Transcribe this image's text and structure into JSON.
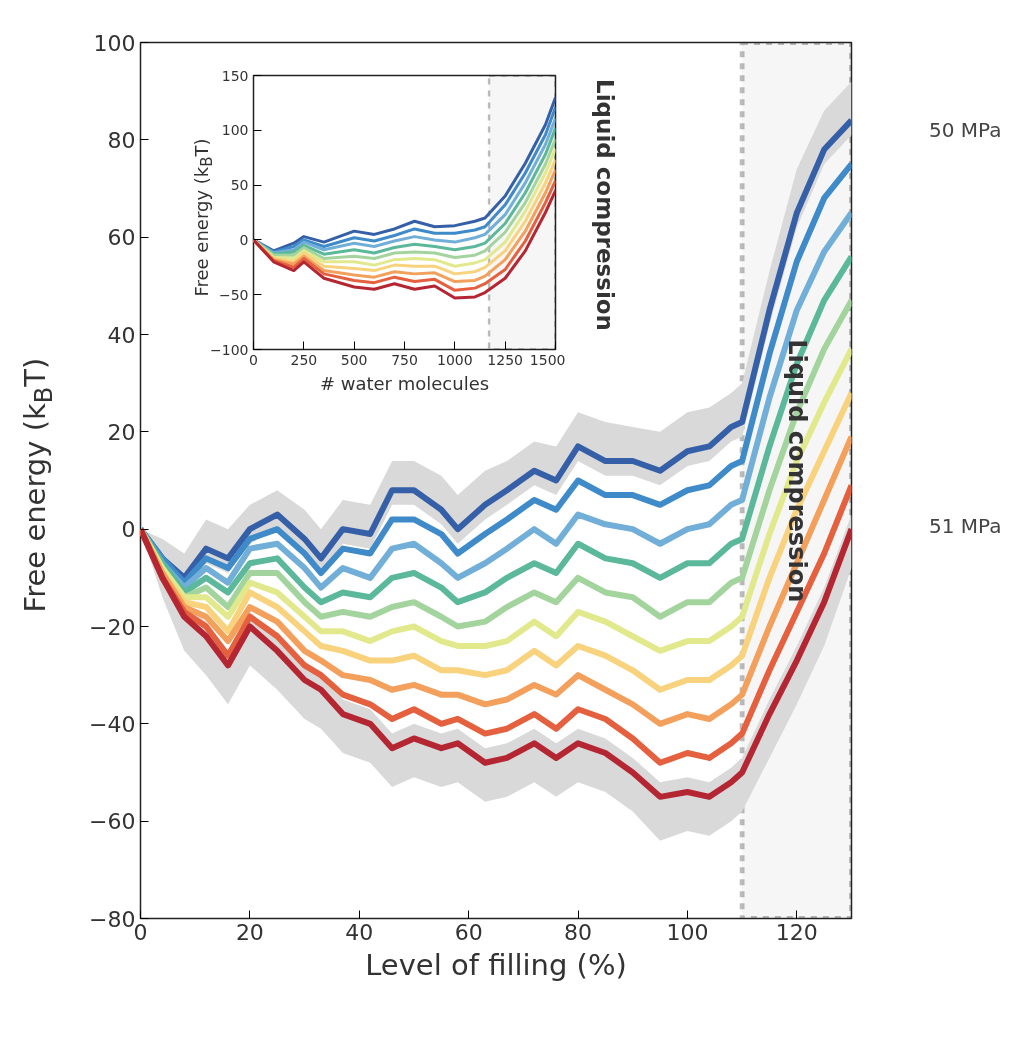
{
  "chart_data": [
    {
      "type": "line",
      "xlabel": "Level of filling (%)",
      "ylabel": "Free energy (k$_{B}$T)",
      "xlim": [
        0,
        130
      ],
      "ylim": [
        -80,
        100
      ],
      "xticks": [
        0,
        20,
        40,
        60,
        80,
        100,
        120
      ],
      "yticks": [
        -80,
        -60,
        -40,
        -20,
        0,
        20,
        40,
        60,
        80,
        100
      ],
      "legend": "right",
      "grid": false,
      "marker": "none",
      "line_style": "solid",
      "x": [
        0,
        4,
        8,
        12,
        16,
        20,
        25,
        30,
        33,
        37,
        42,
        46,
        50,
        55,
        58,
        63,
        67,
        72,
        76,
        80,
        85,
        90,
        95,
        100,
        104,
        108,
        110,
        115,
        120,
        125,
        130
      ],
      "series": [
        {
          "name": "50 MPa",
          "color": "#3560a8",
          "values": [
            0,
            -6,
            -10,
            -4,
            -6,
            0,
            3,
            -2,
            -6,
            0,
            -1,
            8,
            8,
            4,
            0,
            5,
            8,
            12,
            10,
            17,
            14,
            14,
            12,
            16,
            17,
            21,
            22,
            45,
            65,
            78,
            84
          ],
          "upper": [
            0,
            -2,
            -5,
            2,
            0,
            5,
            8,
            4,
            0,
            6,
            5,
            14,
            14,
            11,
            7,
            12,
            14,
            18,
            17,
            24,
            22,
            21,
            20,
            24,
            25,
            28,
            30,
            53,
            74,
            86,
            92
          ],
          "lower": [
            0,
            -8,
            -13,
            -7,
            -9,
            -3,
            0,
            -5,
            -9,
            -3,
            -4,
            5,
            5,
            1,
            -3,
            2,
            5,
            9,
            7,
            14,
            11,
            11,
            9,
            13,
            14,
            18,
            19,
            42,
            62,
            75,
            81
          ]
        },
        {
          "color": "#3f8ac8",
          "values": [
            0,
            -6,
            -11,
            -6,
            -8,
            -2,
            0,
            -5,
            -9,
            -4,
            -5,
            2,
            2,
            -1,
            -5,
            -1,
            2,
            6,
            4,
            10,
            7,
            7,
            5,
            8,
            9,
            13,
            14,
            36,
            55,
            68,
            75
          ]
        },
        {
          "color": "#72afd8",
          "values": [
            0,
            -7,
            -12,
            -8,
            -11,
            -4,
            -3,
            -8,
            -12,
            -8,
            -10,
            -4,
            -3,
            -7,
            -10,
            -7,
            -4,
            0,
            -3,
            3,
            1,
            0,
            -3,
            0,
            1,
            5,
            6,
            27,
            45,
            57,
            65
          ]
        },
        {
          "color": "#5cb89a",
          "values": [
            0,
            -7,
            -13,
            -10,
            -13,
            -7,
            -6,
            -12,
            -15,
            -13,
            -14,
            -10,
            -9,
            -12,
            -15,
            -13,
            -10,
            -7,
            -9,
            -3,
            -6,
            -7,
            -10,
            -7,
            -7,
            -3,
            -2,
            17,
            34,
            47,
            56
          ]
        },
        {
          "color": "#a4d49e",
          "values": [
            0,
            -8,
            -14,
            -12,
            -16,
            -9,
            -9,
            -15,
            -18,
            -17,
            -18,
            -16,
            -15,
            -18,
            -20,
            -19,
            -16,
            -13,
            -15,
            -10,
            -13,
            -14,
            -18,
            -15,
            -15,
            -11,
            -10,
            8,
            24,
            37,
            47
          ]
        },
        {
          "color": "#e2e98c",
          "values": [
            0,
            -8,
            -14,
            -14,
            -18,
            -11,
            -13,
            -18,
            -21,
            -21,
            -23,
            -21,
            -20,
            -23,
            -24,
            -24,
            -23,
            -19,
            -22,
            -17,
            -19,
            -22,
            -25,
            -23,
            -23,
            -20,
            -18,
            -1,
            14,
            26,
            37
          ]
        },
        {
          "color": "#f8d27c",
          "values": [
            0,
            -9,
            -15,
            -16,
            -21,
            -13,
            -16,
            -21,
            -24,
            -25,
            -27,
            -27,
            -26,
            -29,
            -29,
            -30,
            -29,
            -25,
            -28,
            -24,
            -26,
            -29,
            -33,
            -31,
            -31,
            -28,
            -26,
            -10,
            4,
            16,
            28
          ]
        },
        {
          "color": "#f3a05c",
          "values": [
            0,
            -9,
            -16,
            -18,
            -23,
            -16,
            -19,
            -25,
            -27,
            -30,
            -31,
            -33,
            -32,
            -34,
            -34,
            -36,
            -35,
            -32,
            -34,
            -30,
            -33,
            -36,
            -40,
            -38,
            -39,
            -36,
            -34,
            -20,
            -7,
            6,
            19
          ]
        },
        {
          "color": "#e4603e",
          "values": [
            0,
            -10,
            -17,
            -20,
            -26,
            -18,
            -22,
            -28,
            -30,
            -34,
            -36,
            -39,
            -37,
            -40,
            -39,
            -42,
            -41,
            -38,
            -41,
            -37,
            -39,
            -43,
            -48,
            -46,
            -47,
            -44,
            -42,
            -29,
            -17,
            -5,
            9
          ]
        },
        {
          "name": "51 MPa",
          "color": "#b52633",
          "values": [
            0,
            -10,
            -18,
            -22,
            -28,
            -20,
            -25,
            -31,
            -33,
            -38,
            -40,
            -45,
            -43,
            -45,
            -44,
            -48,
            -47,
            -44,
            -47,
            -44,
            -46,
            -50,
            -55,
            -54,
            -55,
            -52,
            -50,
            -38,
            -27,
            -15,
            0
          ],
          "upper": [
            0,
            -7,
            -15,
            -19,
            -25,
            -17,
            -22,
            -28,
            -30,
            -35,
            -37,
            -42,
            -40,
            -42,
            -41,
            -45,
            -44,
            -41,
            -44,
            -41,
            -43,
            -47,
            -52,
            -51,
            -52,
            -49,
            -47,
            -35,
            -24,
            -12,
            3
          ],
          "lower": [
            0,
            -14,
            -25,
            -30,
            -36,
            -28,
            -33,
            -39,
            -41,
            -46,
            -48,
            -53,
            -51,
            -53,
            -52,
            -56,
            -55,
            -52,
            -55,
            -52,
            -54,
            -58,
            -64,
            -62,
            -63,
            -60,
            -58,
            -47,
            -36,
            -24,
            -8
          ]
        }
      ],
      "bands": [
        {
          "axis": "x",
          "from": 110,
          "to": 130,
          "label": "Liquid compression",
          "color": "#222222"
        }
      ]
    },
    {
      "type": "line",
      "xlabel": "# water molecules",
      "ylabel": "Free energy (k$_{B}$T)",
      "xlim": [
        0,
        1500
      ],
      "ylim": [
        -100,
        150
      ],
      "xticks": [
        0,
        250,
        500,
        750,
        1000,
        1250,
        1500
      ],
      "yticks": [
        -100,
        -50,
        0,
        50,
        100,
        150
      ],
      "legend": false,
      "grid": false,
      "marker": "none",
      "line_style": "solid",
      "x": [
        0,
        100,
        200,
        250,
        350,
        500,
        600,
        700,
        800,
        900,
        1000,
        1100,
        1150,
        1250,
        1350,
        1450,
        1500
      ],
      "series": [
        {
          "color": "#3560a8",
          "values": [
            0,
            -10,
            -3,
            3,
            -2,
            8,
            5,
            10,
            17,
            12,
            13,
            17,
            20,
            40,
            70,
            105,
            130
          ]
        },
        {
          "color": "#3f8ac8",
          "values": [
            0,
            -11,
            -6,
            0,
            -6,
            2,
            -1,
            4,
            10,
            6,
            6,
            9,
            12,
            32,
            61,
            96,
            121
          ]
        },
        {
          "color": "#72afd8",
          "values": [
            0,
            -12,
            -9,
            -2,
            -9,
            -3,
            -6,
            -1,
            3,
            0,
            -2,
            2,
            5,
            23,
            52,
            87,
            111
          ]
        },
        {
          "color": "#5cb89a",
          "values": [
            0,
            -13,
            -11,
            -5,
            -13,
            -9,
            -12,
            -7,
            -4,
            -6,
            -9,
            -6,
            -3,
            15,
            43,
            78,
            102
          ]
        },
        {
          "color": "#a4d49e",
          "values": [
            0,
            -14,
            -14,
            -7,
            -17,
            -15,
            -17,
            -12,
            -11,
            -12,
            -16,
            -14,
            -10,
            7,
            34,
            69,
            92
          ]
        },
        {
          "color": "#e2e98c",
          "values": [
            0,
            -16,
            -17,
            -10,
            -20,
            -20,
            -23,
            -18,
            -17,
            -18,
            -24,
            -21,
            -18,
            -2,
            26,
            61,
            83
          ]
        },
        {
          "color": "#f8d27c",
          "values": [
            0,
            -17,
            -20,
            -12,
            -24,
            -26,
            -28,
            -23,
            -24,
            -24,
            -31,
            -29,
            -25,
            -10,
            17,
            52,
            73
          ]
        },
        {
          "color": "#f3a05c",
          "values": [
            0,
            -18,
            -22,
            -15,
            -28,
            -32,
            -34,
            -29,
            -31,
            -30,
            -38,
            -37,
            -33,
            -18,
            8,
            43,
            64
          ]
        },
        {
          "color": "#e4603e",
          "values": [
            0,
            -19,
            -25,
            -17,
            -31,
            -37,
            -39,
            -34,
            -38,
            -36,
            -46,
            -44,
            -40,
            -27,
            -1,
            34,
            54
          ]
        },
        {
          "color": "#b52633",
          "values": [
            0,
            -20,
            -28,
            -20,
            -35,
            -43,
            -45,
            -40,
            -45,
            -42,
            -53,
            -52,
            -48,
            -35,
            -10,
            25,
            45
          ]
        }
      ],
      "bands": [
        {
          "axis": "x",
          "from": 1170,
          "to": 1500,
          "label": "Liquid compression",
          "color": "#222222"
        }
      ]
    }
  ]
}
